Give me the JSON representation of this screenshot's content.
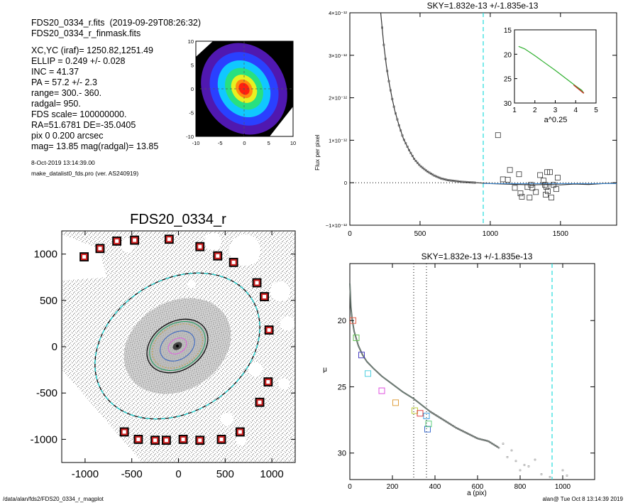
{
  "header": {
    "lines": [
      "FDS20_0334_r.fits  (2019-09-29T08:26:32)",
      "FDS20_0334_r_finmask.fits"
    ],
    "params": [
      "XC,YC (iraf)=  1250.82,1251.49",
      "ELLIP = 0.249 +/- 0.028",
      "INC   = 41.37",
      "PA    = 57.2 +/-   2.3",
      "range=  300.-  360.",
      "radgal=  950.",
      "FDS scale=  100000000.",
      "RA=51.6781   DE=-35.0405",
      "pix 0 0.200 arcsec",
      "mag=  13.85  mag(radgal)=  13.85"
    ],
    "date": "8-Oct-2019 13:14:39.00",
    "program": "make_datalist0_fds.pro (ver. AS240919)"
  },
  "footer": {
    "path": "/data/alan/fds2/FDS20_0334_r_magplot",
    "user": "alan@  Tue Oct  8 13:14:39 2019"
  },
  "colors": {
    "axis": "#000000",
    "cyan_dash": "#22dddd",
    "mask_red": "#cc0000",
    "galaxy_contours": [
      "#5b1d9b",
      "#2f4fff",
      "#15c0ff",
      "#28e08c",
      "#c8ee20",
      "#ffb010",
      "#ff3010"
    ]
  },
  "chart_data": [
    {
      "type": "heatmap",
      "name": "thumbnail",
      "xlim": [
        -10,
        10
      ],
      "ylim": [
        -10,
        10
      ],
      "xticks": [
        "-10",
        "-5",
        "0",
        "5",
        "10"
      ],
      "yticks": [
        "10",
        "5",
        "0",
        "-5",
        "-10"
      ]
    },
    {
      "type": "scatter",
      "name": "flux-profile",
      "title": "SKY=1.832e-13 +/-1.835e-13",
      "xlabel": "",
      "ylabel": "Flux per pixel",
      "xlim": [
        0,
        1900
      ],
      "ylim": [
        -1e-12,
        4e-12
      ],
      "xticks": [
        "0",
        "500",
        "1000",
        "1500"
      ],
      "yticks": [
        {
          "v": 4,
          "label": "4×10⁻¹²"
        },
        {
          "v": 3,
          "label": "3×10⁻¹²"
        },
        {
          "v": 2,
          "label": "2×10⁻¹²"
        },
        {
          "v": 1,
          "label": "1×10⁻¹²"
        },
        {
          "v": 0,
          "label": "0"
        },
        {
          "v": -1,
          "label": "−1×10⁻¹²"
        }
      ],
      "vline_x": 950,
      "profile_x": [
        220,
        240,
        260,
        280,
        300,
        320,
        350,
        380,
        420,
        460,
        500,
        550,
        600,
        650,
        700,
        800,
        900,
        1000,
        1100,
        1200,
        1300,
        1400,
        1500,
        1600,
        1700,
        1800,
        1900
      ],
      "profile_y": [
        4.0,
        3.3,
        2.75,
        2.35,
        2.0,
        1.7,
        1.35,
        1.05,
        0.78,
        0.55,
        0.4,
        0.27,
        0.17,
        0.1,
        0.06,
        0.02,
        0.0,
        -0.02,
        -0.03,
        -0.04,
        -0.05,
        -0.04,
        -0.05,
        -0.03,
        -0.04,
        -0.02,
        -0.01
      ],
      "outliers_x": [
        1055,
        1090,
        1125,
        1140,
        1175,
        1205,
        1215,
        1225,
        1265,
        1280,
        1290,
        1300,
        1325,
        1355,
        1380,
        1390,
        1395,
        1400,
        1405,
        1410,
        1425,
        1435,
        1450,
        1470,
        1480
      ],
      "outliers_y": [
        1.12,
        0.08,
        0.07,
        0.3,
        -0.12,
        0.2,
        -0.25,
        -0.33,
        -0.1,
        -0.35,
        -0.05,
        -0.12,
        -0.22,
        0.18,
        0.05,
        -0.05,
        -0.28,
        -0.1,
        0.25,
        -0.2,
        0.25,
        -0.35,
        -0.05,
        -0.15,
        0.12
      ],
      "inset": {
        "xlabel": "a^0.25",
        "xlim": [
          1,
          5
        ],
        "ylim": [
          15,
          30
        ],
        "xticks": [
          "1",
          "2",
          "3",
          "4",
          "5"
        ],
        "yticks": [
          "15",
          "20",
          "25",
          "30"
        ],
        "curve_x": [
          1.2,
          1.5,
          2.0,
          2.5,
          3.0,
          3.5,
          4.0,
          4.3,
          4.4
        ],
        "curve_y": [
          18.4,
          18.9,
          20.3,
          21.8,
          23.3,
          24.9,
          26.5,
          27.4,
          28.0
        ]
      }
    },
    {
      "type": "image",
      "name": "galaxy-map",
      "title": "FDS20_0334_r",
      "xlim": [
        -1250,
        1250
      ],
      "ylim": [
        -1250,
        1250
      ],
      "xticks": [
        "-1000",
        "-500",
        "0",
        "500",
        "1000"
      ],
      "yticks": [
        "1000",
        "500",
        "0",
        "-500",
        "-1000"
      ],
      "outer_ellipse": {
        "a": 950,
        "b": 713,
        "pa_deg": 57.2
      },
      "mask_boxes_x": [
        -1010,
        -840,
        -660,
        -470,
        -100,
        230,
        420,
        590,
        840,
        920,
        970,
        -580,
        -430,
        -250,
        -130,
        50,
        230,
        460,
        660,
        870,
        960
      ],
      "mask_boxes_y": [
        970,
        1060,
        1140,
        1150,
        1160,
        1080,
        980,
        910,
        690,
        540,
        180,
        -920,
        -1000,
        -1010,
        -1010,
        -1000,
        -1010,
        -1000,
        -920,
        -600,
        -380
      ]
    },
    {
      "type": "scatter",
      "name": "magnitude-profile",
      "title": "SKY=1.832e-13 +/-1.835e-13",
      "xlabel": "a (pix)",
      "ylabel": "μ",
      "xlim": [
        0,
        1150
      ],
      "ylim": [
        32,
        15.7
      ],
      "xticks": [
        "0",
        "200",
        "400",
        "600",
        "800",
        "1000"
      ],
      "yticks": [
        "20",
        "25",
        "30"
      ],
      "dotted_vlines": [
        300,
        360
      ],
      "dash_vline": 950,
      "curve_x": [
        0,
        5,
        10,
        20,
        40,
        60,
        80,
        110,
        150,
        200,
        250,
        300,
        340,
        380,
        450,
        500,
        550,
        600,
        650,
        700
      ],
      "curve_y": [
        17.2,
        19.0,
        19.8,
        20.8,
        21.9,
        22.6,
        23.1,
        23.6,
        24.2,
        24.8,
        25.4,
        25.9,
        26.4,
        26.9,
        27.6,
        28.1,
        28.5,
        28.9,
        29.1,
        29.6
      ],
      "scatter_x": [
        720,
        740,
        760,
        780,
        800,
        820,
        840,
        870,
        900,
        940,
        1000,
        1020
      ],
      "scatter_y": [
        29.3,
        30.3,
        29.8,
        30.6,
        31.3,
        30.9,
        31.0,
        30.5,
        31.6,
        31.8,
        31.3,
        31.7
      ],
      "markers": [
        {
          "x": 15,
          "y": 20.0,
          "color": "#e0604a"
        },
        {
          "x": 30,
          "y": 21.3,
          "color": "#60c050"
        },
        {
          "x": 55,
          "y": 22.6,
          "color": "#4a40c0"
        },
        {
          "x": 85,
          "y": 24.0,
          "color": "#50d0e0"
        },
        {
          "x": 150,
          "y": 25.3,
          "color": "#e050e0"
        },
        {
          "x": 215,
          "y": 26.2,
          "color": "#e0a040"
        },
        {
          "x": 305,
          "y": 26.8,
          "color": "#c0d040"
        },
        {
          "x": 330,
          "y": 27.0,
          "color": "#e04040"
        },
        {
          "x": 360,
          "y": 27.2,
          "color": "#40a0e0"
        },
        {
          "x": 365,
          "y": 28.2,
          "color": "#4070d0"
        },
        {
          "x": 370,
          "y": 27.8,
          "color": "#60d080"
        }
      ]
    }
  ]
}
